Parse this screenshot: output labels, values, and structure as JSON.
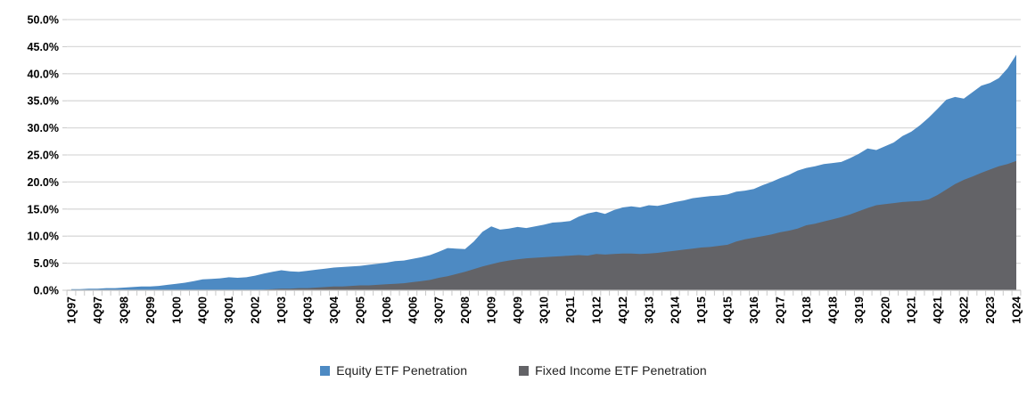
{
  "chart_data": {
    "type": "area",
    "title": "",
    "xlabel": "",
    "ylabel": "",
    "ylim": [
      0,
      50
    ],
    "y_tick_labels": [
      "0.0%",
      "5.0%",
      "10.0%",
      "15.0%",
      "20.0%",
      "25.0%",
      "30.0%",
      "35.0%",
      "40.0%",
      "45.0%",
      "50.0%"
    ],
    "x_tick_every": 3,
    "x_tick_labels_visible": [
      "1Q97",
      "4Q97",
      "3Q98",
      "2Q99",
      "1Q00",
      "4Q00",
      "3Q01",
      "2Q02",
      "1Q03",
      "4Q03",
      "3Q04",
      "2Q05",
      "1Q06",
      "4Q06",
      "3Q07",
      "2Q08",
      "1Q09",
      "4Q09",
      "3Q10",
      "2Q11",
      "1Q12",
      "4Q12",
      "3Q13",
      "2Q14",
      "1Q15",
      "4Q15",
      "3Q16",
      "2Q17",
      "1Q18",
      "4Q18",
      "3Q19",
      "2Q20",
      "1Q21",
      "4Q21",
      "3Q22",
      "2Q23",
      "1Q24"
    ],
    "grid": "horizontal",
    "legend_position": "bottom",
    "overlap_mode": "overlay",
    "categories": [
      "1Q97",
      "2Q97",
      "3Q97",
      "4Q97",
      "1Q98",
      "2Q98",
      "3Q98",
      "4Q98",
      "1Q99",
      "2Q99",
      "3Q99",
      "4Q99",
      "1Q00",
      "2Q00",
      "3Q00",
      "4Q00",
      "1Q01",
      "2Q01",
      "3Q01",
      "4Q01",
      "1Q02",
      "2Q02",
      "3Q02",
      "4Q02",
      "1Q03",
      "2Q03",
      "3Q03",
      "4Q03",
      "1Q04",
      "2Q04",
      "3Q04",
      "4Q04",
      "1Q05",
      "2Q05",
      "3Q05",
      "4Q05",
      "1Q06",
      "2Q06",
      "3Q06",
      "4Q06",
      "1Q07",
      "2Q07",
      "3Q07",
      "4Q07",
      "1Q08",
      "2Q08",
      "3Q08",
      "4Q08",
      "1Q09",
      "2Q09",
      "3Q09",
      "4Q09",
      "1Q10",
      "2Q10",
      "3Q10",
      "4Q10",
      "1Q11",
      "2Q11",
      "3Q11",
      "4Q11",
      "1Q12",
      "2Q12",
      "3Q12",
      "4Q12",
      "1Q13",
      "2Q13",
      "3Q13",
      "4Q13",
      "1Q14",
      "2Q14",
      "3Q14",
      "4Q14",
      "1Q15",
      "2Q15",
      "3Q15",
      "4Q15",
      "1Q16",
      "2Q16",
      "3Q16",
      "4Q16",
      "1Q17",
      "2Q17",
      "3Q17",
      "4Q17",
      "1Q18",
      "2Q18",
      "3Q18",
      "4Q18",
      "1Q19",
      "2Q19",
      "3Q19",
      "4Q19",
      "1Q20",
      "2Q20",
      "3Q20",
      "4Q20",
      "1Q21",
      "2Q21",
      "3Q21",
      "4Q21",
      "1Q22",
      "2Q22",
      "3Q22",
      "4Q22",
      "1Q23",
      "2Q23",
      "3Q23",
      "4Q23",
      "1Q24"
    ],
    "series": [
      {
        "name": "Equity ETF Penetration",
        "color": "#4D8AC3",
        "values": [
          0.2,
          0.2,
          0.3,
          0.3,
          0.4,
          0.4,
          0.5,
          0.6,
          0.7,
          0.7,
          0.8,
          1.0,
          1.2,
          1.4,
          1.7,
          2.0,
          2.1,
          2.2,
          2.4,
          2.3,
          2.4,
          2.7,
          3.1,
          3.4,
          3.7,
          3.5,
          3.4,
          3.6,
          3.8,
          4.0,
          4.2,
          4.3,
          4.4,
          4.5,
          4.7,
          4.9,
          5.1,
          5.4,
          5.5,
          5.8,
          6.1,
          6.5,
          7.1,
          7.8,
          7.7,
          7.6,
          9.0,
          10.8,
          11.8,
          11.2,
          11.4,
          11.7,
          11.5,
          11.8,
          12.1,
          12.5,
          12.6,
          12.8,
          13.6,
          14.2,
          14.5,
          14.1,
          14.8,
          15.3,
          15.5,
          15.3,
          15.7,
          15.6,
          15.9,
          16.3,
          16.6,
          17.0,
          17.2,
          17.4,
          17.5,
          17.7,
          18.2,
          18.4,
          18.7,
          19.4,
          20.0,
          20.7,
          21.3,
          22.1,
          22.6,
          22.9,
          23.3,
          23.5,
          23.7,
          24.4,
          25.2,
          26.2,
          25.9,
          26.6,
          27.3,
          28.5,
          29.3,
          30.5,
          31.9,
          33.5,
          35.2,
          35.7,
          35.4,
          36.6,
          37.8,
          38.3,
          39.2,
          41.0,
          43.5
        ]
      },
      {
        "name": "Fixed Income ETF Penetration",
        "color": "#636367",
        "values": [
          0,
          0,
          0,
          0,
          0,
          0,
          0,
          0,
          0,
          0,
          0,
          0,
          0,
          0,
          0,
          0,
          0,
          0,
          0,
          0,
          0,
          0,
          0.1,
          0.2,
          0.3,
          0.3,
          0.4,
          0.4,
          0.5,
          0.6,
          0.7,
          0.7,
          0.8,
          0.9,
          0.9,
          1.0,
          1.1,
          1.2,
          1.3,
          1.5,
          1.7,
          1.9,
          2.3,
          2.6,
          3.0,
          3.4,
          3.9,
          4.4,
          4.8,
          5.2,
          5.5,
          5.7,
          5.9,
          6.0,
          6.1,
          6.2,
          6.3,
          6.4,
          6.5,
          6.4,
          6.7,
          6.6,
          6.7,
          6.8,
          6.8,
          6.7,
          6.8,
          6.9,
          7.1,
          7.3,
          7.5,
          7.7,
          7.9,
          8.0,
          8.2,
          8.4,
          9.0,
          9.4,
          9.7,
          10.0,
          10.3,
          10.7,
          11.0,
          11.4,
          12.0,
          12.3,
          12.7,
          13.1,
          13.5,
          14.0,
          14.6,
          15.2,
          15.7,
          15.9,
          16.1,
          16.3,
          16.4,
          16.5,
          16.8,
          17.6,
          18.6,
          19.6,
          20.4,
          21.0,
          21.7,
          22.3,
          22.9,
          23.3,
          23.9
        ]
      }
    ]
  },
  "legend": {
    "items": [
      {
        "label": "Equity ETF Penetration",
        "color": "#4D8AC3"
      },
      {
        "label": "Fixed Income ETF Penetration",
        "color": "#636367"
      }
    ]
  },
  "style_colors": {
    "gridline": "#D9D9D9",
    "axis_line": "#BFBFBF",
    "tick": "#C9C9C9",
    "axis_text": "#000000"
  }
}
